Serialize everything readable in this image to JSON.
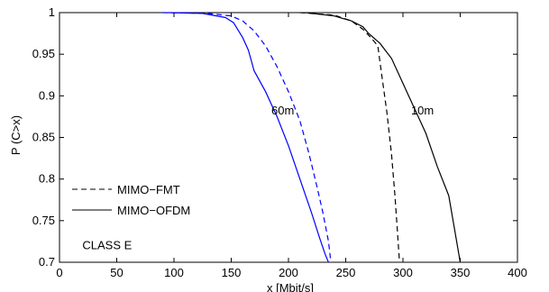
{
  "chart_data": {
    "type": "line",
    "xlabel": "x [Mbit/s]",
    "ylabel": "P (C>x)",
    "xlim": [
      0,
      400
    ],
    "ylim": [
      0.7,
      1
    ],
    "xticks": [
      0,
      50,
      100,
      150,
      200,
      250,
      300,
      350,
      400
    ],
    "yticks": [
      0.7,
      0.75,
      0.8,
      0.85,
      0.9,
      0.95,
      1
    ],
    "xtick_labels": [
      "0",
      "50",
      "100",
      "150",
      "200",
      "250",
      "300",
      "350",
      "400"
    ],
    "ytick_labels": [
      "0.7",
      "0.75",
      "0.8",
      "0.85",
      "0.9",
      "0.95",
      "1"
    ],
    "grid": false,
    "legend": {
      "position": "bottom-left",
      "entries": [
        {
          "label": "MIMO−FMT",
          "style": "dashed",
          "color": "#000000"
        },
        {
          "label": "MIMO−OFDM",
          "style": "solid",
          "color": "#000000"
        }
      ]
    },
    "annotations": [
      {
        "text": "60m",
        "x": 195,
        "y": 0.882
      },
      {
        "text": "10m",
        "x": 317,
        "y": 0.882
      },
      {
        "text": "CLASS E",
        "x": 20,
        "y": 0.72
      }
    ],
    "series": [
      {
        "style": "dashed",
        "color": "#0000ff",
        "x": [
          90,
          130,
          150,
          160,
          170,
          180,
          190,
          200,
          210,
          218,
          225,
          230,
          235,
          237
        ],
        "y": [
          1.0,
          0.999,
          0.996,
          0.99,
          0.978,
          0.96,
          0.935,
          0.905,
          0.87,
          0.83,
          0.79,
          0.76,
          0.725,
          0.7
        ]
      },
      {
        "style": "solid",
        "color": "#0000ff",
        "x": [
          95,
          125,
          145,
          152,
          160,
          165,
          170,
          180,
          190,
          200,
          210,
          220,
          227,
          232,
          235
        ],
        "y": [
          1.0,
          0.999,
          0.994,
          0.988,
          0.97,
          0.955,
          0.93,
          0.905,
          0.875,
          0.84,
          0.8,
          0.76,
          0.73,
          0.71,
          0.7
        ]
      },
      {
        "style": "dashed",
        "color": "#000000",
        "x": [
          210,
          240,
          255,
          265,
          272,
          278,
          282,
          286,
          290,
          293,
          295,
          296,
          297
        ],
        "y": [
          1.0,
          0.997,
          0.99,
          0.98,
          0.97,
          0.96,
          0.92,
          0.88,
          0.83,
          0.78,
          0.74,
          0.72,
          0.7
        ]
      },
      {
        "style": "solid",
        "color": "#000000",
        "x": [
          215,
          240,
          255,
          265,
          270,
          280,
          290,
          300,
          310,
          320,
          330,
          340,
          345,
          350
        ],
        "y": [
          1.0,
          0.996,
          0.99,
          0.983,
          0.975,
          0.963,
          0.945,
          0.915,
          0.885,
          0.855,
          0.815,
          0.78,
          0.74,
          0.7
        ]
      }
    ]
  }
}
